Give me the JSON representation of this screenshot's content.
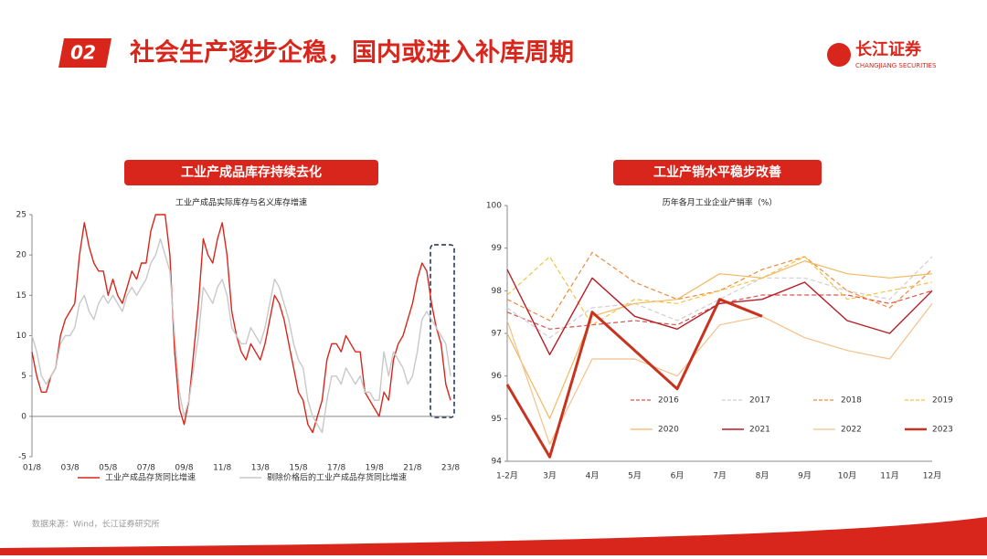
{
  "header": {
    "number": "02",
    "title": "社会生产逐步企稳，国内或进入补库周期"
  },
  "logo": {
    "name": "长江证券",
    "sub": "CHANGJIANG SECURITIES"
  },
  "panels": [
    {
      "banner": "工业产成品库存持续去化"
    },
    {
      "banner": "工业产销水平稳步改善"
    }
  ],
  "chart_data": [
    {
      "type": "line",
      "title": "工业产成品实际库存与名义库存增速",
      "categories": [
        "01/8",
        null,
        null,
        null,
        null,
        null,
        null,
        null,
        "03/8",
        null,
        null,
        null,
        null,
        null,
        null,
        null,
        "05/8",
        null,
        null,
        null,
        null,
        null,
        null,
        null,
        "07/8",
        null,
        null,
        null,
        null,
        null,
        null,
        null,
        "09/8",
        null,
        null,
        null,
        null,
        null,
        null,
        null,
        "11/8",
        null,
        null,
        null,
        null,
        null,
        null,
        null,
        "13/8",
        null,
        null,
        null,
        null,
        null,
        null,
        null,
        "15/8",
        null,
        null,
        null,
        null,
        null,
        null,
        null,
        "17/8",
        null,
        null,
        null,
        null,
        null,
        null,
        null,
        "19/8",
        null,
        null,
        null,
        null,
        null,
        null,
        null,
        "21/8",
        null,
        null,
        null,
        null,
        null,
        null,
        null,
        "23/8"
      ],
      "series": [
        {
          "name": "工业产成品存货同比增速",
          "color": "#d9261c",
          "width": 1.4,
          "values": [
            8,
            5,
            3,
            3,
            5,
            6,
            10,
            12,
            13,
            14,
            20,
            24,
            21,
            19,
            18,
            18,
            15,
            17,
            15,
            14,
            16,
            18,
            17,
            19,
            19,
            23,
            25,
            25,
            25,
            20,
            8,
            1,
            -1,
            2,
            8,
            14,
            22,
            20,
            19,
            22,
            24,
            20,
            13,
            10,
            8,
            7,
            9,
            8,
            7,
            9,
            12,
            15,
            14,
            12,
            9,
            6,
            3,
            2,
            -1,
            -2,
            0,
            2,
            7,
            9,
            9,
            8,
            10,
            9,
            8,
            8,
            3,
            2,
            1,
            0,
            3,
            2,
            7,
            9,
            10,
            12,
            14,
            17,
            19,
            18,
            14,
            11,
            9,
            4,
            2
          ]
        },
        {
          "name": "剔除价格后的工业产成品存货同比增速",
          "color": "#c8c8c8",
          "width": 1.4,
          "values": [
            10,
            8,
            5,
            4,
            5,
            6,
            9,
            10,
            10,
            11,
            14,
            15,
            13,
            12,
            14,
            15,
            14,
            15,
            14,
            13,
            15,
            16,
            15,
            16,
            17,
            19,
            20,
            22,
            20,
            18,
            10,
            3,
            0,
            2,
            6,
            10,
            16,
            15,
            14,
            16,
            17,
            15,
            11,
            10,
            9,
            9,
            11,
            10,
            9,
            11,
            14,
            17,
            16,
            14,
            12,
            9,
            7,
            6,
            2,
            0,
            -1,
            -2,
            2,
            5,
            5,
            4,
            6,
            5,
            4,
            5,
            3,
            3,
            2,
            2,
            8,
            5,
            8,
            7,
            6,
            4,
            5,
            8,
            12,
            13,
            12,
            11,
            10,
            9,
            5
          ]
        }
      ],
      "ylim": [
        -5,
        25
      ],
      "yticks": [
        -5,
        0,
        5,
        10,
        15,
        20,
        25
      ]
    },
    {
      "type": "line",
      "title": "历年各月工业企业产销率（%）",
      "categories": [
        "1-2月",
        "3月",
        "4月",
        "5月",
        "6月",
        "7月",
        "8月",
        "9月",
        "10月",
        "11月",
        "12月"
      ],
      "series": [
        {
          "name": "2016",
          "color": "#d9534f",
          "dash": true,
          "width": 1.2,
          "values": [
            97.5,
            97.1,
            97.2,
            97.3,
            97.2,
            97.7,
            97.9,
            97.9,
            97.9,
            97.7,
            98.0
          ]
        },
        {
          "name": "2017",
          "color": "#cfcfcf",
          "dash": true,
          "width": 1.2,
          "values": [
            97.6,
            96.9,
            97.6,
            97.7,
            97.3,
            97.8,
            98.3,
            98.3,
            98.0,
            97.8,
            98.8
          ]
        },
        {
          "name": "2018",
          "color": "#f08a3c",
          "dash": true,
          "width": 1.2,
          "values": [
            97.8,
            97.3,
            98.9,
            98.2,
            97.8,
            98.0,
            98.5,
            98.8,
            98.0,
            97.6,
            98.5
          ]
        },
        {
          "name": "2019",
          "color": "#f5c242",
          "dash": true,
          "width": 1.2,
          "values": [
            97.9,
            98.8,
            97.2,
            97.8,
            97.7,
            98.0,
            98.3,
            98.8,
            97.8,
            98.0,
            98.2
          ]
        },
        {
          "name": "2020",
          "color": "#f2b760",
          "width": 1.2,
          "values": [
            97.0,
            95.0,
            97.4,
            97.7,
            97.8,
            98.4,
            98.3,
            98.7,
            98.4,
            98.3,
            98.4
          ]
        },
        {
          "name": "2021",
          "color": "#b81c24",
          "width": 1.4,
          "values": [
            98.5,
            96.5,
            98.3,
            97.4,
            97.1,
            97.7,
            97.8,
            98.2,
            97.3,
            97.0,
            98.0
          ]
        },
        {
          "name": "2022",
          "color": "#f5c08a",
          "width": 1.2,
          "values": [
            97.3,
            94.4,
            96.4,
            96.4,
            96.0,
            97.2,
            97.4,
            96.9,
            96.6,
            96.4,
            97.7
          ]
        },
        {
          "name": "2023",
          "color": "#c8331f",
          "width": 3,
          "values": [
            95.8,
            94.1,
            97.5,
            96.6,
            95.7,
            97.8,
            97.4,
            null,
            null,
            null,
            null
          ]
        }
      ],
      "ylim": [
        94,
        100
      ],
      "yticks": [
        94,
        95,
        96,
        97,
        98,
        99,
        100
      ],
      "legend": "bottom"
    }
  ],
  "source": "数据来源：Wind，长江证券研究所"
}
